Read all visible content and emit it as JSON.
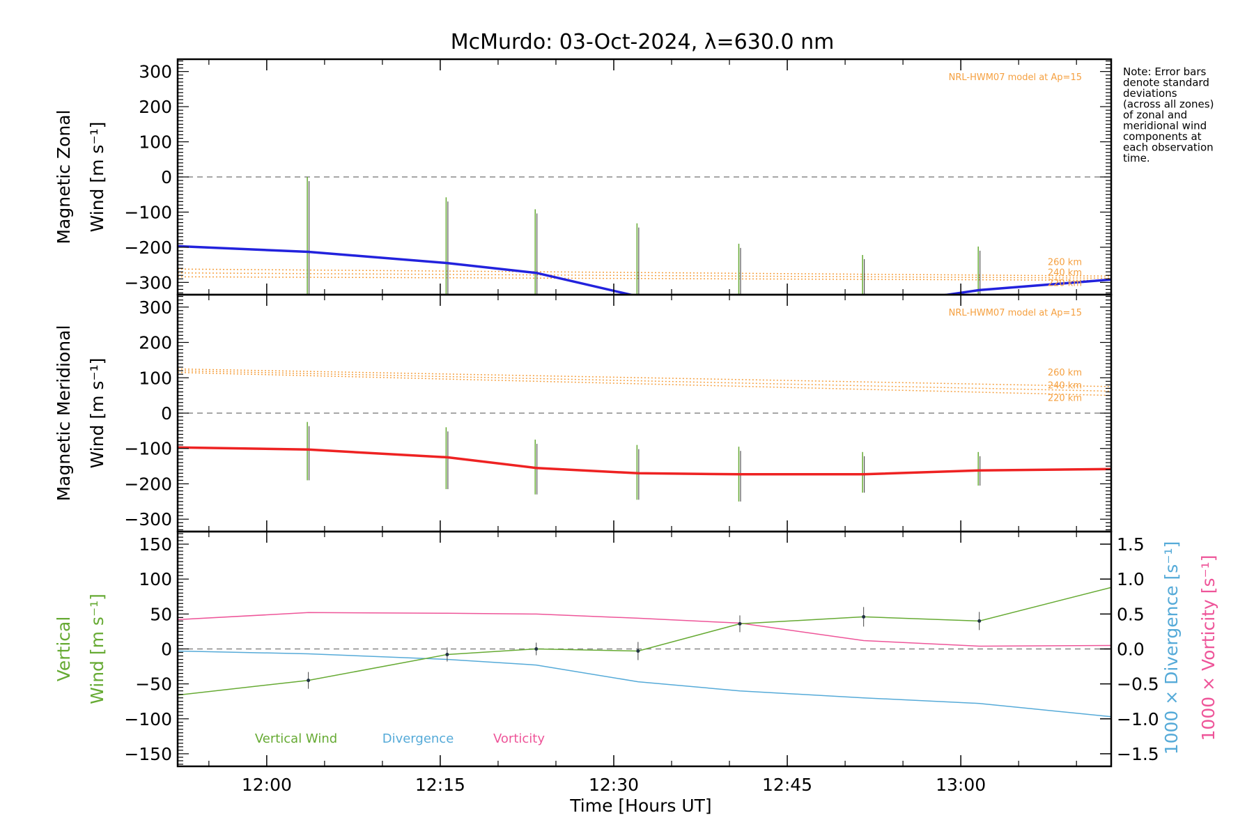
{
  "title": "McMurdo: 03-Oct-2024, λ=630.0 nm",
  "note_lines": [
    "Note: Error bars",
    "denote standard",
    "deviations",
    "(across all zones)",
    "of zonal and",
    "meridional wind",
    "components at",
    "each observation",
    "time."
  ],
  "xlabel": "Time [Hours UT]",
  "x_ticks": [
    "12:00",
    "12:15",
    "12:30",
    "12:45",
    "13:00"
  ],
  "x_tick_minutes": [
    0,
    15,
    30,
    45,
    60
  ],
  "x_range_minutes": [
    -7.7,
    73.0
  ],
  "model_label": "NRL-HWM07 model at Ap=15",
  "altitudes": [
    "260 km",
    "240 km",
    "220 km"
  ],
  "colors": {
    "zonal": "#2222dd",
    "meridional": "#ee2222",
    "model": "#f5a040",
    "vertical": "#66aa33",
    "divergence": "#55aad8",
    "vorticity": "#ee5599",
    "zero_line": "#888888"
  },
  "chart_data": [
    {
      "type": "line",
      "panel": "zonal",
      "ylabel_line1": "Magnetic Zonal",
      "ylabel_line2": "Wind [m s⁻¹]",
      "ylim": [
        -335,
        335
      ],
      "y_ticks": [
        300,
        200,
        100,
        0,
        -100,
        -200,
        -300
      ],
      "x": [
        -7.7,
        3.6,
        15.6,
        23.3,
        32.1,
        40.9,
        51.6,
        61.6,
        73.0
      ],
      "values": [
        -197,
        -213,
        -245,
        -273,
        -340,
        -380,
        -370,
        -322,
        -292
      ],
      "error_bars": {
        "x": [
          3.6,
          15.6,
          23.3,
          32.1,
          40.9,
          51.6,
          61.6
        ],
        "lo": [
          -340,
          -340,
          -340,
          -340,
          -340,
          -340,
          -340
        ],
        "hi": [
          0,
          -58,
          -92,
          -132,
          -190,
          -222,
          -198
        ]
      },
      "model": {
        "x": [
          -7.7,
          73.0
        ],
        "alt_260": [
          -262,
          -282
        ],
        "alt_240": [
          -273,
          -288
        ],
        "alt_220": [
          -284,
          -294
        ]
      }
    },
    {
      "type": "line",
      "panel": "meridional",
      "ylabel_line1": "Magnetic Meridional",
      "ylabel_line2": "Wind [m s⁻¹]",
      "ylim": [
        -335,
        335
      ],
      "y_ticks": [
        300,
        200,
        100,
        0,
        -100,
        -200,
        -300
      ],
      "x": [
        -7.7,
        3.6,
        15.6,
        23.3,
        32.1,
        40.9,
        51.6,
        61.6,
        73.0
      ],
      "values": [
        -97,
        -103,
        -125,
        -155,
        -170,
        -173,
        -173,
        -162,
        -158
      ],
      "error_bars": {
        "x": [
          3.6,
          15.6,
          23.3,
          32.1,
          40.9,
          51.6,
          61.6
        ],
        "lo": [
          -190,
          -215,
          -230,
          -245,
          -250,
          -225,
          -205
        ],
        "hi": [
          -25,
          -40,
          -75,
          -90,
          -95,
          -110,
          -110
        ]
      },
      "model": {
        "x": [
          -7.7,
          73.0
        ],
        "alt_260": [
          125,
          75
        ],
        "alt_240": [
          120,
          62
        ],
        "alt_220": [
          115,
          50
        ]
      }
    },
    {
      "type": "line",
      "panel": "vertical",
      "ylabel_line1": "Vertical",
      "ylabel_line2": "Wind [m s⁻¹]",
      "ylim": [
        -168,
        168
      ],
      "y_ticks": [
        150,
        100,
        50,
        0,
        -50,
        -100,
        -150
      ],
      "right_ylim": [
        -1.68,
        1.68
      ],
      "right_ticks": [
        "1.5",
        "1.0",
        "0.5",
        "0.0",
        "−0.5",
        "−1.0",
        "−1.5"
      ],
      "right_tick_values": [
        1.5,
        1.0,
        0.5,
        0.0,
        -0.5,
        -1.0,
        -1.5
      ],
      "right_label_divergence": "1000 × Divergence [s⁻¹]",
      "right_label_vorticity": "1000 × Vorticity [s⁻¹]",
      "legend": [
        "Vertical Wind",
        "Divergence",
        "Vorticity"
      ],
      "series": [
        {
          "name": "Vertical Wind",
          "x": [
            -7.7,
            3.6,
            15.6,
            23.3,
            32.1,
            40.9,
            51.6,
            61.6,
            73.0
          ],
          "values": [
            -66,
            -45,
            -8,
            0,
            -3,
            36,
            46,
            40,
            88
          ],
          "errors": [
            0,
            12,
            10,
            9,
            13,
            12,
            14,
            13,
            0
          ]
        },
        {
          "name": "Divergence",
          "x": [
            -7.7,
            3.6,
            15.6,
            23.3,
            32.1,
            40.9,
            51.6,
            61.6,
            73.0
          ],
          "values": [
            -0.03,
            -0.07,
            -0.15,
            -0.23,
            -0.47,
            -0.6,
            -0.7,
            -0.78,
            -0.97
          ]
        },
        {
          "name": "Vorticity",
          "x": [
            -7.7,
            3.6,
            15.6,
            23.3,
            32.1,
            40.9,
            51.6,
            61.6,
            73.0
          ],
          "values": [
            0.42,
            0.52,
            0.51,
            0.5,
            0.44,
            0.37,
            0.12,
            0.04,
            0.05
          ]
        }
      ]
    }
  ]
}
